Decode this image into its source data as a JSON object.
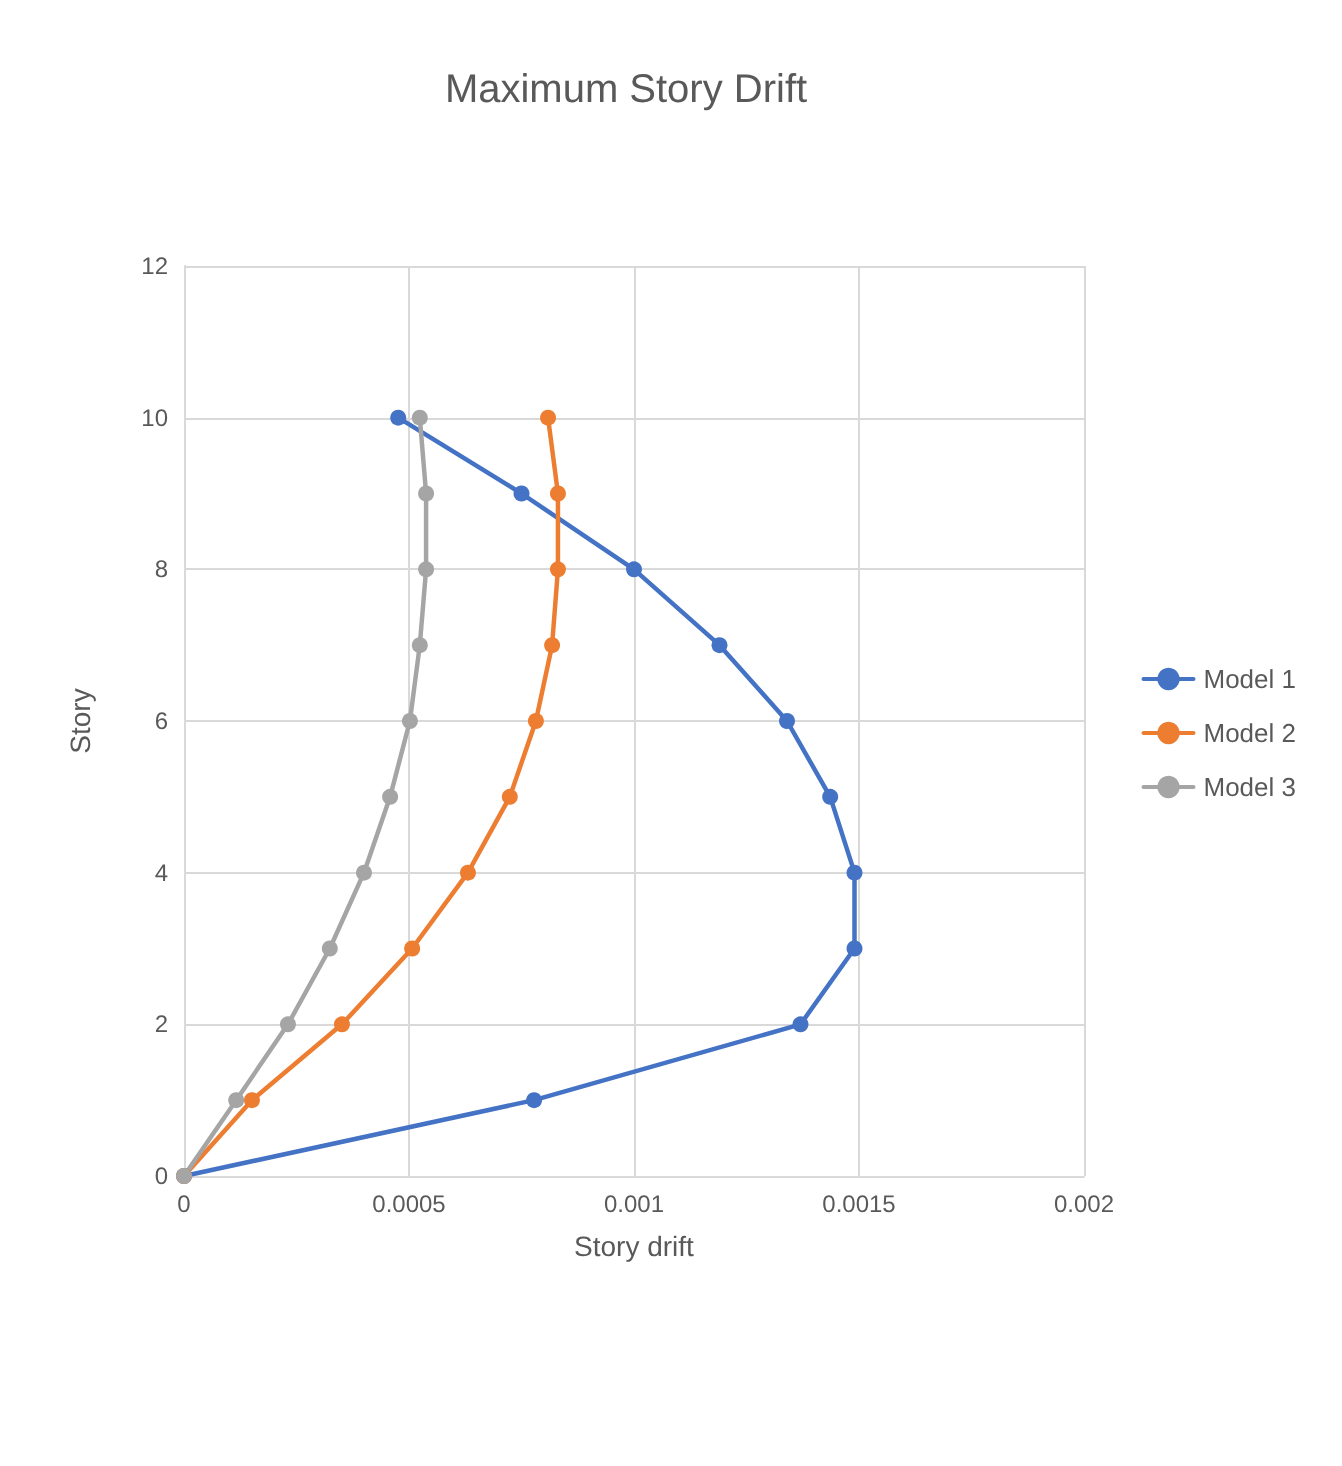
{
  "chart_data": {
    "type": "line",
    "title": "Maximum Story Drift",
    "xlabel": "Story drift",
    "ylabel": "Story",
    "xlim": [
      0,
      0.002
    ],
    "xticks": [
      0,
      0.0005,
      0.001,
      0.0015,
      0.002
    ],
    "ylim": [
      0,
      12
    ],
    "yticks": [
      0,
      2,
      4,
      6,
      8,
      10,
      12
    ],
    "grid": true,
    "legend": "right",
    "marker": "circle",
    "line_style": "solid",
    "series": [
      {
        "name": "Model 1",
        "color": "#4472c4",
        "x": [
          0,
          0.000778,
          0.00137,
          0.00149,
          0.00149,
          0.001436,
          0.00134,
          0.00119,
          0.001,
          0.00075,
          0.000476
        ],
        "values": [
          0,
          1,
          2,
          3,
          4,
          5,
          6,
          7,
          8,
          9,
          10
        ]
      },
      {
        "name": "Model 2",
        "color": "#ed7d31",
        "x": [
          0,
          0.000151,
          0.000351,
          0.000507,
          0.000631,
          0.000724,
          0.000782,
          0.000818,
          0.000831,
          0.000831,
          0.000809
        ],
        "values": [
          0,
          1,
          2,
          3,
          4,
          5,
          6,
          7,
          8,
          9,
          10
        ]
      },
      {
        "name": "Model 3",
        "color": "#a5a5a5",
        "x": [
          0,
          0.000116,
          0.000231,
          0.000324,
          0.0004,
          0.000458,
          0.000502,
          0.000524,
          0.000538,
          0.000538,
          0.000524
        ],
        "values": [
          0,
          1,
          2,
          3,
          4,
          5,
          6,
          7,
          8,
          9,
          10
        ]
      }
    ]
  }
}
